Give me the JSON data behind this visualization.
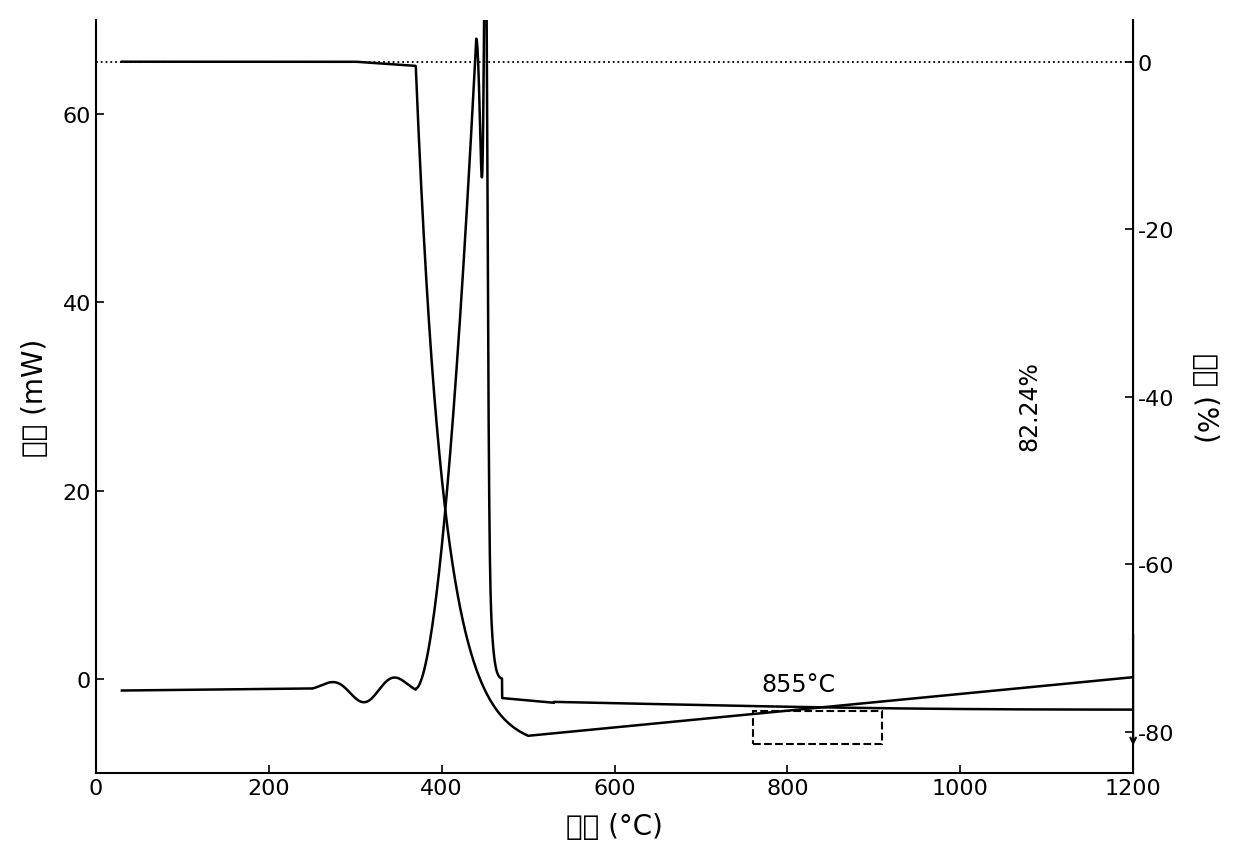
{
  "xlabel": "温度 (°C)",
  "ylabel_left": "热流 (mW)",
  "ylabel_right": "失重 (%)",
  "xlim": [
    0,
    1200
  ],
  "ylim_left": [
    -10,
    70
  ],
  "ylim_right": [
    -85,
    5
  ],
  "xticks": [
    0,
    200,
    400,
    600,
    800,
    1000,
    1200
  ],
  "yticks_left": [
    0,
    20,
    40,
    60
  ],
  "yticks_right": [
    -80,
    -60,
    -40,
    -20,
    0
  ],
  "annotation_temp": "855°C",
  "annotation_pct": "82.24%",
  "line_color": "#000000",
  "bg_color": "#ffffff",
  "font_size_labels": 20,
  "font_size_ticks": 16,
  "font_size_annot": 17
}
